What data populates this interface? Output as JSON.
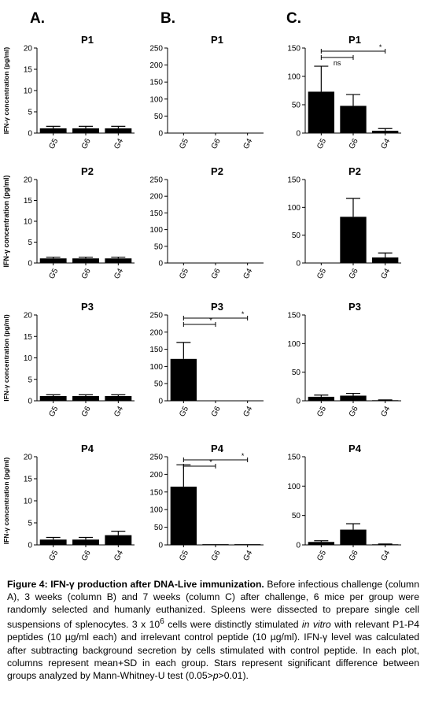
{
  "column_labels": [
    "A.",
    "B.",
    "C."
  ],
  "ylabel_pgml": "IFN-γ concentration (pg/ml)",
  "ylabel_pgml_row1": "IFN-γ concentration (pg/ml)",
  "caption": {
    "bold": "Figure 4: IFN-γ production after DNA-Live immunization.",
    "seg1": " Before infectious challenge (column A), 3 weeks (column B) and 7 weeks (column C) after challenge, 6 mice per group were randomly selected and humanly euthanized. Spleens were dissected to prepare single cell suspensions of splenocytes. 3 x 10",
    "sup": "6",
    "seg2": " cells were distinctly stimulated ",
    "italic": "in vitro",
    "seg3": " with relevant P1-P4 peptides (10 µg/ml each) and irrelevant control peptide (10 µg/ml). IFN-γ level was calculated after subtracting background secretion by cells stimulated with control peptide. In each plot, columns represent mean+SD in each group. Stars represent significant difference between groups analyzed by Mann-Whitney-U test (0.05>",
    "p": "p",
    "seg4": ">0.01)."
  },
  "chart_data": [
    {
      "type": "bar",
      "panel": "A",
      "title": "P1",
      "categories": [
        "G5",
        "G6",
        "G4"
      ],
      "values": [
        1.1,
        1.1,
        1.1
      ],
      "errors": [
        0.5,
        0.5,
        0.5
      ],
      "ylim": [
        0,
        20
      ],
      "yticks": [
        0,
        5,
        10,
        15,
        20
      ]
    },
    {
      "type": "bar",
      "panel": "B",
      "title": "P1",
      "categories": [
        "G5",
        "G6",
        "G4"
      ],
      "values": [
        0,
        0,
        0
      ],
      "errors": [
        0,
        0,
        0
      ],
      "ylim": [
        0,
        250
      ],
      "yticks": [
        0,
        50,
        100,
        150,
        200,
        250
      ]
    },
    {
      "type": "bar",
      "panel": "C",
      "title": "P1",
      "categories": [
        "G5",
        "G6",
        "G4"
      ],
      "values": [
        73,
        48,
        4
      ],
      "errors": [
        45,
        20,
        4
      ],
      "ylim": [
        0,
        150
      ],
      "yticks": [
        0,
        50,
        100,
        150
      ],
      "annotations": [
        {
          "from": "G5",
          "to": "G6",
          "label": "ns"
        },
        {
          "from": "G5",
          "to": "G4",
          "label": "*"
        }
      ]
    },
    {
      "type": "bar",
      "panel": "A",
      "title": "P2",
      "categories": [
        "G5",
        "G6",
        "G4"
      ],
      "values": [
        1.1,
        1.1,
        1.1
      ],
      "errors": [
        0.3,
        0.3,
        0.3
      ],
      "ylim": [
        0,
        20
      ],
      "yticks": [
        0,
        5,
        10,
        15,
        20
      ]
    },
    {
      "type": "bar",
      "panel": "B",
      "title": "P2",
      "categories": [
        "G5",
        "G6",
        "G4"
      ],
      "values": [
        0,
        0,
        0
      ],
      "errors": [
        0,
        0,
        0
      ],
      "ylim": [
        0,
        250
      ],
      "yticks": [
        0,
        50,
        100,
        150,
        200,
        250
      ]
    },
    {
      "type": "bar",
      "panel": "C",
      "title": "P2",
      "categories": [
        "G5",
        "G6",
        "G4"
      ],
      "values": [
        0,
        83,
        10
      ],
      "errors": [
        0,
        33,
        8
      ],
      "ylim": [
        0,
        150
      ],
      "yticks": [
        0,
        50,
        100,
        150
      ]
    },
    {
      "type": "bar",
      "panel": "A",
      "title": "P3",
      "categories": [
        "G5",
        "G6",
        "G4"
      ],
      "values": [
        1.1,
        1.1,
        1.1
      ],
      "errors": [
        0.3,
        0.3,
        0.3
      ],
      "ylim": [
        0,
        20
      ],
      "yticks": [
        0,
        5,
        10,
        15,
        20
      ]
    },
    {
      "type": "bar",
      "panel": "B",
      "title": "P3",
      "categories": [
        "G5",
        "G6",
        "G4"
      ],
      "values": [
        122,
        0,
        0
      ],
      "errors": [
        48,
        0,
        0
      ],
      "ylim": [
        0,
        250
      ],
      "yticks": [
        0,
        50,
        100,
        150,
        200,
        250
      ],
      "annotations": [
        {
          "from": "G5",
          "to": "G6",
          "label": "*"
        },
        {
          "from": "G5",
          "to": "G4",
          "label": "*"
        }
      ]
    },
    {
      "type": "bar",
      "panel": "C",
      "title": "P3",
      "categories": [
        "G5",
        "G6",
        "G4"
      ],
      "values": [
        7,
        9,
        1
      ],
      "errors": [
        3,
        4,
        0.5
      ],
      "ylim": [
        0,
        150
      ],
      "yticks": [
        0,
        50,
        100,
        150
      ]
    },
    {
      "type": "bar",
      "panel": "A",
      "title": "P4",
      "categories": [
        "G5",
        "G6",
        "G4"
      ],
      "values": [
        1.2,
        1.2,
        2.2
      ],
      "errors": [
        0.5,
        0.5,
        0.9
      ],
      "ylim": [
        0,
        20
      ],
      "yticks": [
        0,
        5,
        10,
        15,
        20
      ]
    },
    {
      "type": "bar",
      "panel": "B",
      "title": "P4",
      "categories": [
        "G5",
        "G6",
        "G4"
      ],
      "values": [
        165,
        2,
        2
      ],
      "errors": [
        62,
        0,
        0
      ],
      "ylim": [
        0,
        250
      ],
      "yticks": [
        0,
        50,
        100,
        150,
        200,
        250
      ],
      "annotations": [
        {
          "from": "G5",
          "to": "G6",
          "label": "*"
        },
        {
          "from": "G5",
          "to": "G4",
          "label": "*"
        }
      ]
    },
    {
      "type": "bar",
      "panel": "C",
      "title": "P4",
      "categories": [
        "G5",
        "G6",
        "G4"
      ],
      "values": [
        5,
        26,
        1
      ],
      "errors": [
        2,
        10,
        0.5
      ],
      "ylim": [
        0,
        150
      ],
      "yticks": [
        0,
        50,
        100,
        150
      ]
    }
  ]
}
